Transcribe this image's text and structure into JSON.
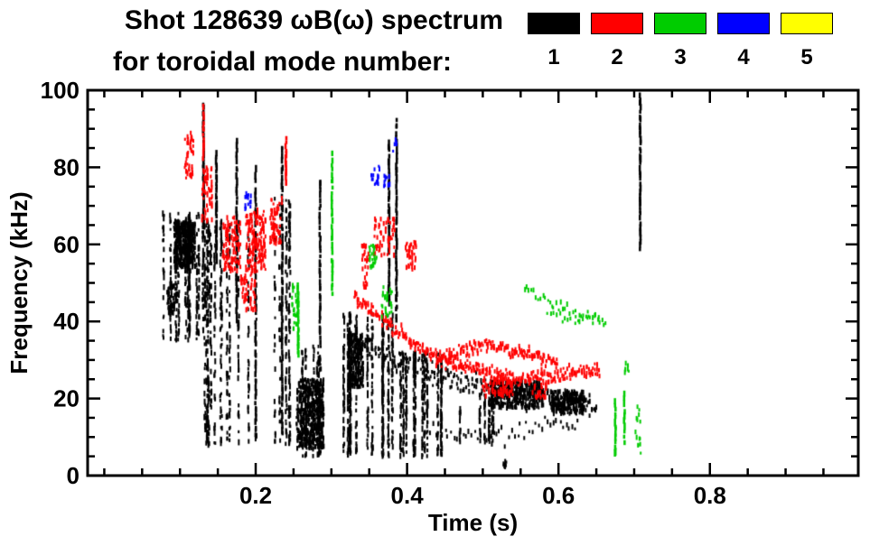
{
  "chart_data": {
    "type": "scatter",
    "title_line1": "Shot 128639 ωB(ω) spectrum",
    "title_line2": "for toroidal mode number:",
    "xlabel": "Time (s)",
    "ylabel": "Frequency (kHz)",
    "xlim": [
      -0.022,
      0.996
    ],
    "ylim": [
      0,
      100
    ],
    "xticks": [
      0.2,
      0.4,
      0.6,
      0.8
    ],
    "xtick_labels": [
      "0.2",
      "0.4",
      "0.6",
      "0.8"
    ],
    "x_minor_step": 0.05,
    "yticks": [
      0,
      20,
      40,
      60,
      80,
      100
    ],
    "ytick_labels": [
      "0",
      "20",
      "40",
      "60",
      "80",
      "100"
    ],
    "y_minor_step": 5,
    "grid": false,
    "background": "#ffffff",
    "axis_color": "#000000",
    "legend_position": "top-right",
    "legend": [
      {
        "label": "1",
        "color": "#000000"
      },
      {
        "label": "2",
        "color": "#ff0000"
      },
      {
        "label": "3",
        "color": "#00cc00"
      },
      {
        "label": "4",
        "color": "#0000ff"
      },
      {
        "label": "5",
        "color": "#ffff00"
      }
    ],
    "seed": 128639,
    "series": [
      {
        "name": "n=1",
        "mode": 1,
        "color": "#000000",
        "structures": [
          {
            "type": "columns",
            "t0": 0.075,
            "t1": 0.135,
            "cols": 12,
            "per": 26,
            "f_lo": 35,
            "f_hi": 68
          },
          {
            "type": "blob",
            "t": 0.106,
            "f": 60,
            "dt": 0.014,
            "df": 6,
            "count": 420
          },
          {
            "type": "blob",
            "t": 0.09,
            "f": 46,
            "dt": 0.007,
            "df": 4,
            "count": 70
          },
          {
            "type": "columns",
            "t0": 0.13,
            "t1": 0.195,
            "cols": 13,
            "per": 34,
            "f_lo": 8,
            "f_hi": 66
          },
          {
            "type": "vline",
            "t": 0.131,
            "f_lo": 62,
            "f_hi": 97,
            "count": 40
          },
          {
            "type": "vline",
            "t": 0.148,
            "f_lo": 55,
            "f_hi": 84,
            "count": 30
          },
          {
            "type": "vline",
            "t": 0.175,
            "f_lo": 40,
            "f_hi": 88,
            "count": 40
          },
          {
            "type": "columns",
            "t0": 0.195,
            "t1": 0.25,
            "cols": 8,
            "per": 26,
            "f_lo": 8,
            "f_hi": 72
          },
          {
            "type": "vline",
            "t": 0.2,
            "f_lo": 10,
            "f_hi": 80,
            "count": 45
          },
          {
            "type": "vline",
            "t": 0.235,
            "f_lo": 10,
            "f_hi": 86,
            "count": 60
          },
          {
            "type": "blob",
            "t": 0.272,
            "f": 16,
            "dt": 0.018,
            "df": 9,
            "count": 520
          },
          {
            "type": "columns",
            "t0": 0.253,
            "t1": 0.3,
            "cols": 7,
            "per": 20,
            "f_lo": 5,
            "f_hi": 34
          },
          {
            "type": "vline",
            "t": 0.285,
            "f_lo": 34,
            "f_hi": 77,
            "count": 35
          },
          {
            "type": "columns",
            "t0": 0.315,
            "t1": 0.385,
            "cols": 13,
            "per": 40,
            "f_lo": 5,
            "f_hi": 42
          },
          {
            "type": "columns",
            "t0": 0.385,
            "t1": 0.455,
            "cols": 11,
            "per": 34,
            "f_lo": 5,
            "f_hi": 32
          },
          {
            "type": "blob",
            "t": 0.332,
            "f": 30,
            "dt": 0.01,
            "df": 7,
            "count": 220
          },
          {
            "type": "vline",
            "t": 0.376,
            "f_lo": 44,
            "f_hi": 87,
            "count": 40
          },
          {
            "type": "vline",
            "t": 0.386,
            "f_lo": 40,
            "f_hi": 93,
            "count": 45
          },
          {
            "type": "track",
            "pts": [
              [
                0.33,
                36
              ],
              [
                0.38,
                30
              ],
              [
                0.44,
                26
              ],
              [
                0.5,
                23
              ],
              [
                0.56,
                21
              ],
              [
                0.62,
                19
              ],
              [
                0.65,
                18
              ]
            ],
            "spread": 3,
            "step": 0.0025,
            "per": 2
          },
          {
            "type": "track",
            "pts": [
              [
                0.43,
                12
              ],
              [
                0.5,
                10
              ],
              [
                0.56,
                12
              ],
              [
                0.63,
                14
              ]
            ],
            "spread": 2.5,
            "step": 0.004,
            "per": 1
          },
          {
            "type": "columns",
            "t0": 0.455,
            "t1": 0.52,
            "cols": 7,
            "per": 12,
            "f_lo": 8,
            "f_hi": 20
          },
          {
            "type": "blob",
            "t": 0.545,
            "f": 21,
            "dt": 0.035,
            "df": 3.5,
            "count": 330
          },
          {
            "type": "blob",
            "t": 0.612,
            "f": 19,
            "dt": 0.022,
            "df": 3,
            "count": 200
          },
          {
            "type": "vline",
            "t": 0.708,
            "f_lo": 58,
            "f_hi": 99,
            "count": 40
          },
          {
            "type": "blob",
            "t": 0.53,
            "f": 3,
            "dt": 0.003,
            "df": 1,
            "count": 10
          }
        ]
      },
      {
        "name": "n=2",
        "mode": 2,
        "color": "#ff0000",
        "structures": [
          {
            "type": "blob",
            "t": 0.112,
            "f": 83,
            "dt": 0.006,
            "df": 6,
            "count": 45
          },
          {
            "type": "blob",
            "t": 0.136,
            "f": 73,
            "dt": 0.007,
            "df": 7,
            "count": 55
          },
          {
            "type": "vline",
            "t": 0.131,
            "f_lo": 82,
            "f_hi": 96,
            "count": 12
          },
          {
            "type": "blob",
            "t": 0.168,
            "f": 60,
            "dt": 0.012,
            "df": 7,
            "count": 110
          },
          {
            "type": "blob",
            "t": 0.2,
            "f": 61,
            "dt": 0.013,
            "df": 8,
            "count": 160
          },
          {
            "type": "blob",
            "t": 0.227,
            "f": 66,
            "dt": 0.008,
            "df": 6,
            "count": 60
          },
          {
            "type": "blob",
            "t": 0.19,
            "f": 48,
            "dt": 0.01,
            "df": 5,
            "count": 50
          },
          {
            "type": "vline",
            "t": 0.24,
            "f_lo": 76,
            "f_hi": 88,
            "count": 12
          },
          {
            "type": "track",
            "pts": [
              [
                0.33,
                47
              ],
              [
                0.37,
                40
              ],
              [
                0.41,
                34
              ],
              [
                0.45,
                30
              ],
              [
                0.5,
                27
              ],
              [
                0.55,
                25
              ],
              [
                0.6,
                26
              ],
              [
                0.655,
                28
              ]
            ],
            "spread": 1.8,
            "step": 0.002,
            "per": 2
          },
          {
            "type": "track",
            "pts": [
              [
                0.44,
                30
              ],
              [
                0.47,
                32
              ],
              [
                0.5,
                34
              ],
              [
                0.53,
                33
              ],
              [
                0.57,
                31
              ],
              [
                0.6,
                29
              ]
            ],
            "spread": 1.6,
            "step": 0.002,
            "per": 2
          },
          {
            "type": "blob",
            "t": 0.37,
            "f": 62,
            "dt": 0.014,
            "df": 5,
            "count": 55
          },
          {
            "type": "blob",
            "t": 0.405,
            "f": 57,
            "dt": 0.007,
            "df": 4,
            "count": 35
          },
          {
            "type": "blob",
            "t": 0.345,
            "f": 54,
            "dt": 0.005,
            "df": 6,
            "count": 25
          },
          {
            "type": "blob",
            "t": 0.52,
            "f": 23,
            "dt": 0.02,
            "df": 2.5,
            "count": 70
          },
          {
            "type": "blob",
            "t": 0.575,
            "f": 22,
            "dt": 0.01,
            "df": 2,
            "count": 25
          }
        ]
      },
      {
        "name": "n=3",
        "mode": 3,
        "color": "#00cc00",
        "structures": [
          {
            "type": "vline",
            "t": 0.256,
            "f_lo": 31,
            "f_hi": 50,
            "count": 22
          },
          {
            "type": "blob",
            "t": 0.252,
            "f": 44,
            "dt": 0.004,
            "df": 6,
            "count": 25
          },
          {
            "type": "vline",
            "t": 0.301,
            "f_lo": 47,
            "f_hi": 84,
            "count": 30
          },
          {
            "type": "blob",
            "t": 0.355,
            "f": 57,
            "dt": 0.005,
            "df": 3,
            "count": 22
          },
          {
            "type": "blob",
            "t": 0.372,
            "f": 45,
            "dt": 0.008,
            "df": 4,
            "count": 25
          },
          {
            "type": "track",
            "pts": [
              [
                0.555,
                48
              ],
              [
                0.6,
                44
              ],
              [
                0.635,
                41
              ],
              [
                0.665,
                40
              ]
            ],
            "spread": 1.2,
            "step": 0.003,
            "per": 1
          },
          {
            "type": "track",
            "pts": [
              [
                0.585,
                42
              ],
              [
                0.625,
                40
              ],
              [
                0.655,
                42
              ]
            ],
            "spread": 1.0,
            "step": 0.004,
            "per": 1
          },
          {
            "type": "vline",
            "t": 0.675,
            "f_lo": 5,
            "f_hi": 20,
            "count": 14
          },
          {
            "type": "vline",
            "t": 0.687,
            "f_lo": 8,
            "f_hi": 22,
            "count": 10
          },
          {
            "type": "blob",
            "t": 0.69,
            "f": 28,
            "dt": 0.003,
            "df": 1.5,
            "count": 6
          },
          {
            "type": "blob",
            "t": 0.705,
            "f": 12,
            "dt": 0.004,
            "df": 7,
            "count": 14
          }
        ]
      },
      {
        "name": "n=4",
        "mode": 4,
        "color": "#0000ff",
        "structures": [
          {
            "type": "blob",
            "t": 0.19,
            "f": 71,
            "dt": 0.004,
            "df": 2.5,
            "count": 14
          },
          {
            "type": "blob",
            "t": 0.358,
            "f": 78,
            "dt": 0.006,
            "df": 2.5,
            "count": 18
          },
          {
            "type": "blob",
            "t": 0.373,
            "f": 76,
            "dt": 0.004,
            "df": 2,
            "count": 10
          },
          {
            "type": "blob",
            "t": 0.383,
            "f": 86,
            "dt": 0.003,
            "df": 2,
            "count": 6
          }
        ]
      },
      {
        "name": "n=5",
        "mode": 5,
        "color": "#ffff00",
        "structures": []
      }
    ]
  }
}
